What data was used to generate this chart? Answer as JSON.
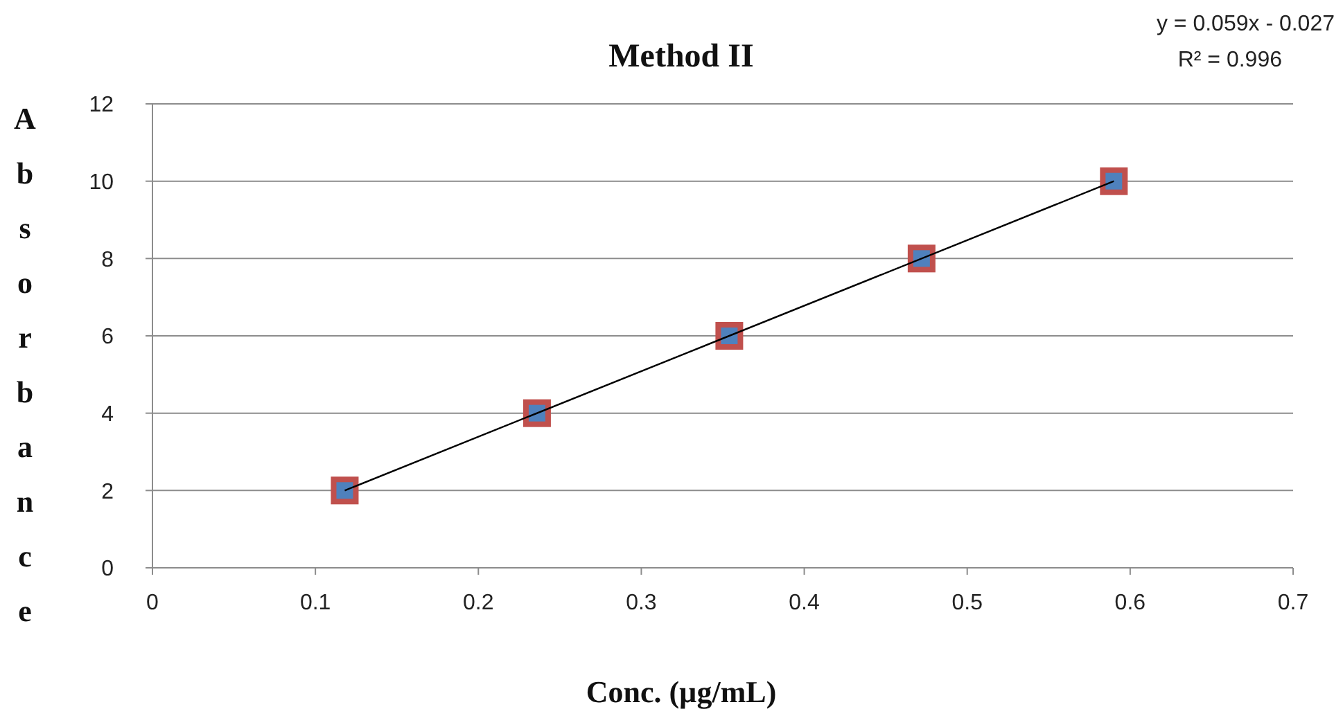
{
  "chart_data": {
    "type": "scatter",
    "title": "Method II",
    "xlabel": "Conc. (µg/mL)",
    "ylabel": "Absorbance",
    "annotations": [
      "y = 0.059x - 0.027",
      "R² = 0.996"
    ],
    "x": [
      0.118,
      0.236,
      0.354,
      0.472,
      0.59
    ],
    "series": [
      {
        "color": "#4f81bd",
        "values": [
          2,
          4,
          6,
          8,
          10
        ],
        "marker": "square"
      },
      {
        "type": "line",
        "color": "#000000",
        "x": [
          0.118,
          0.59
        ],
        "values": [
          2,
          10
        ],
        "marker": "none"
      }
    ],
    "xlim": [
      0,
      0.7
    ],
    "xticks": [
      0,
      0.1,
      0.2,
      0.3,
      0.4,
      0.5,
      0.6,
      0.7
    ],
    "ylim": [
      0,
      12
    ],
    "yticks": [
      0,
      2,
      4,
      6,
      8,
      10,
      12
    ],
    "grid": "y"
  }
}
